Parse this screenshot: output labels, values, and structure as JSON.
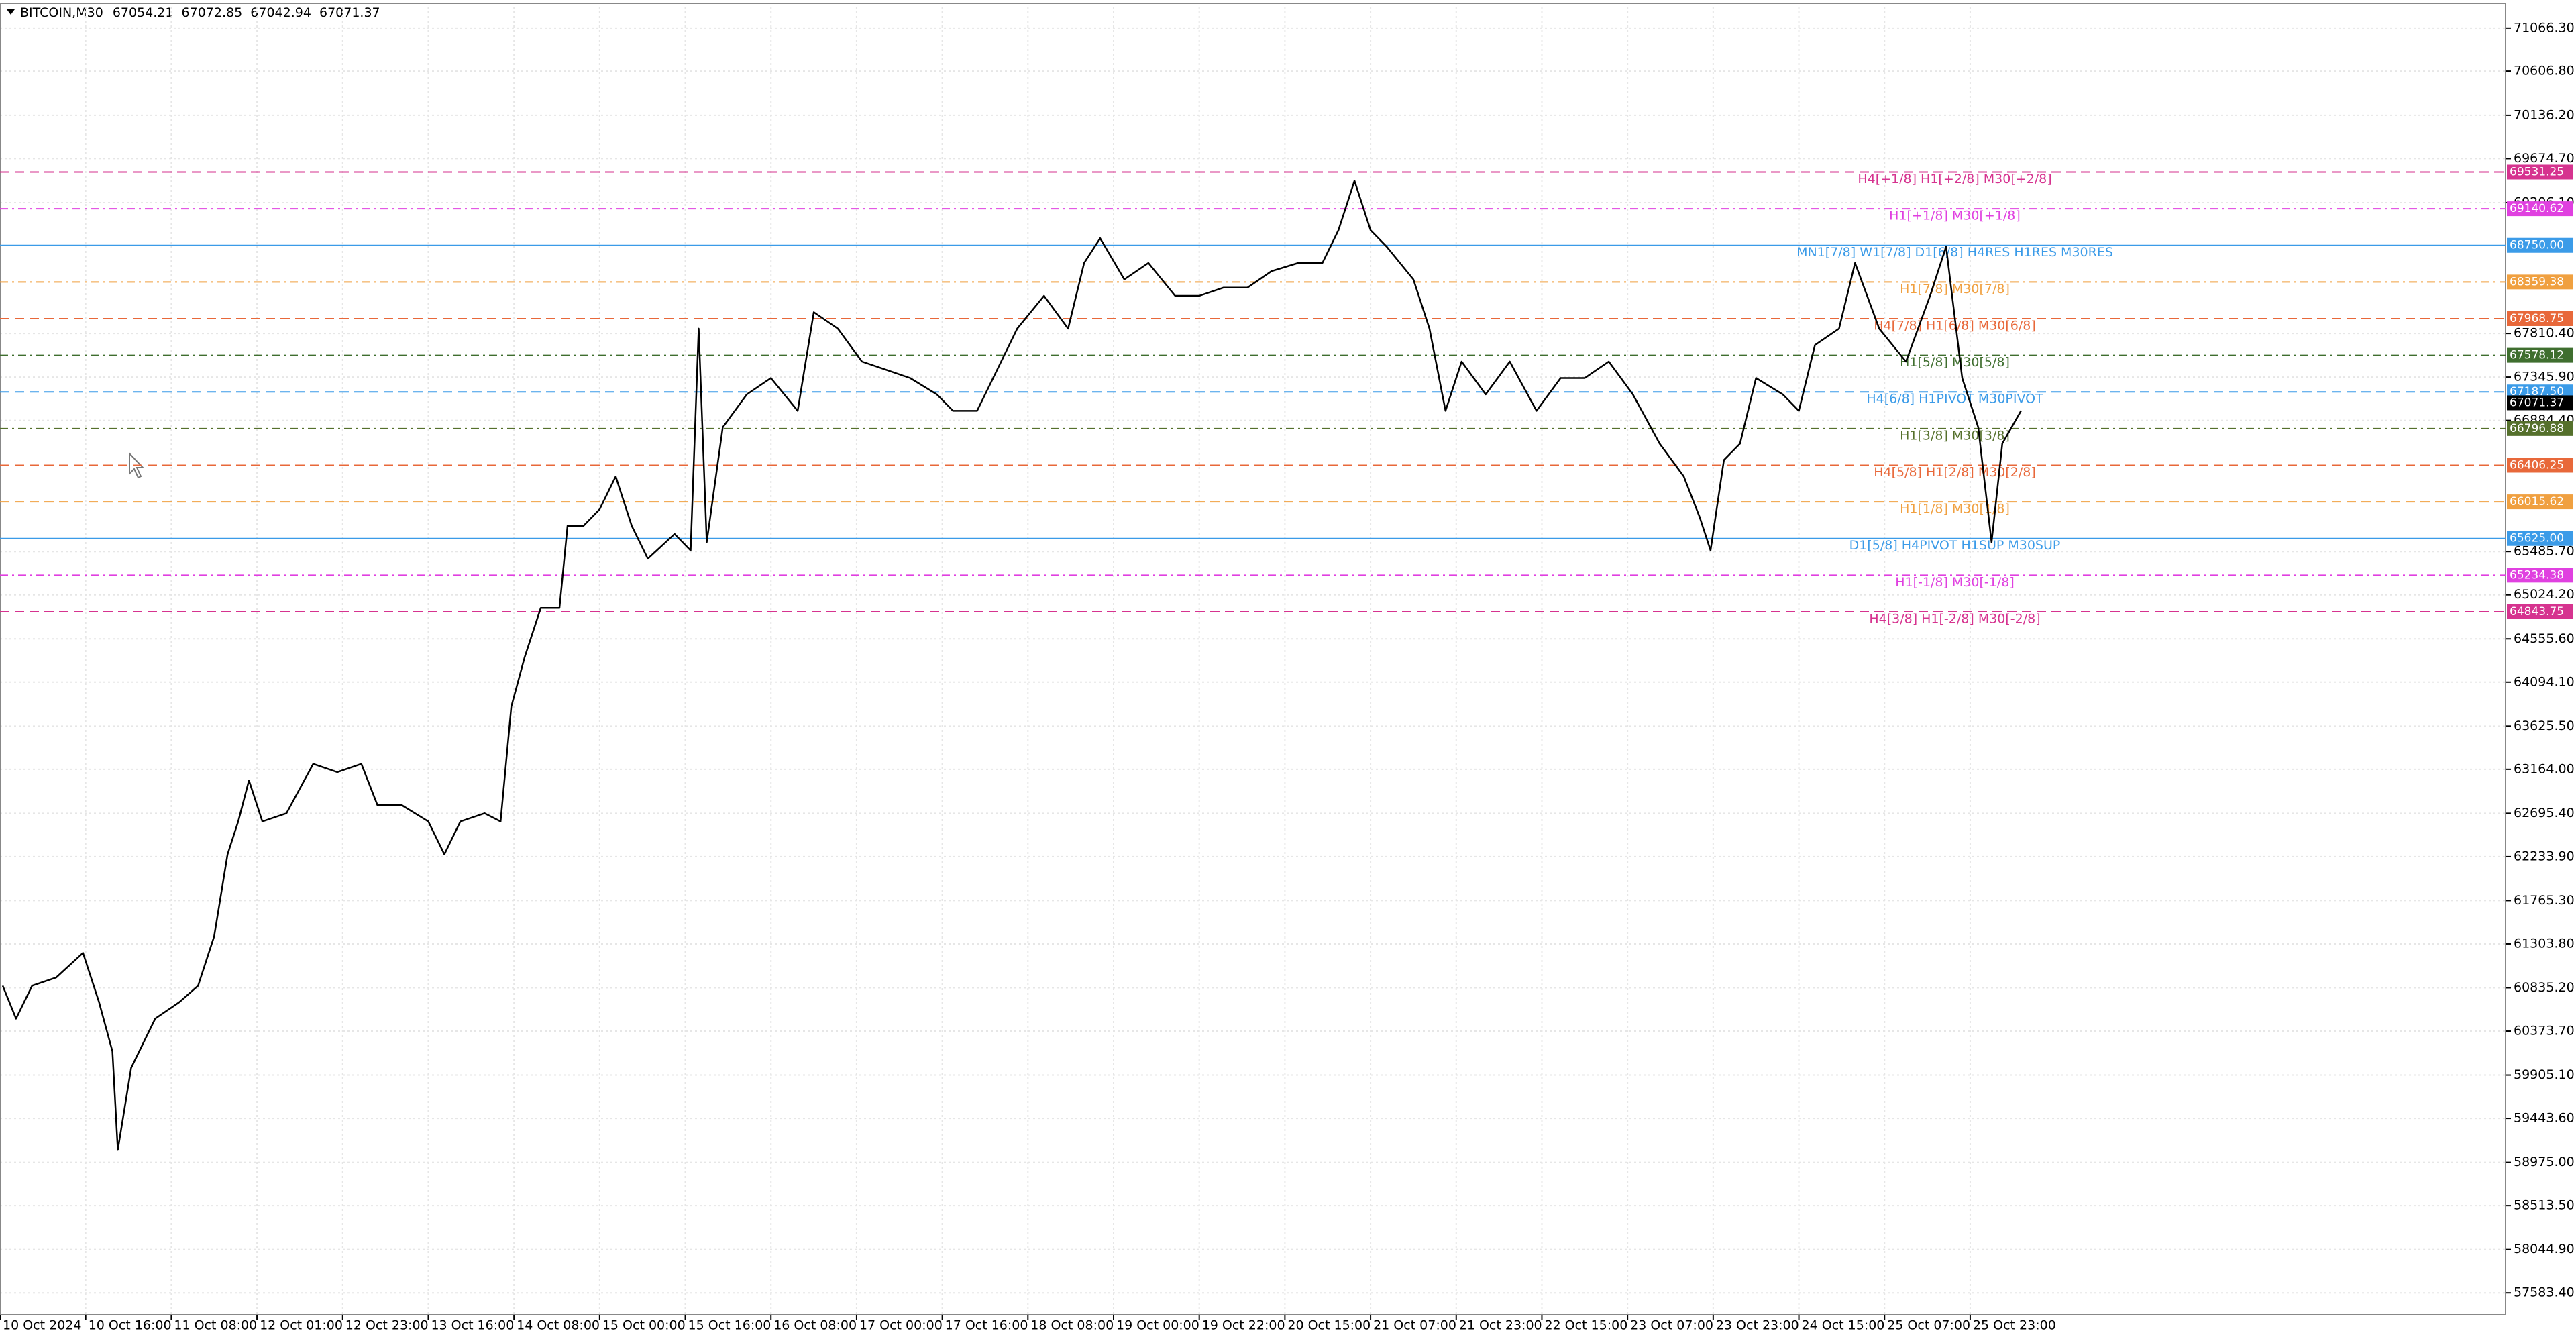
{
  "chart_data": {
    "type": "line",
    "title": "BITCOIN,M30",
    "ohlc": [
      67054.21,
      67072.85,
      67042.94,
      67071.37
    ],
    "series": [
      {
        "color": "#000000",
        "x": [
          1,
          6,
          12,
          21,
          31,
          37,
          42,
          44,
          49,
          58,
          67,
          74,
          80,
          85,
          89,
          93,
          98,
          107,
          117,
          126,
          135,
          141,
          150,
          160,
          166,
          172,
          181,
          187,
          191,
          196,
          202,
          209,
          212,
          218,
          224,
          230,
          236,
          242,
          252,
          258,
          261,
          264,
          270,
          279,
          288,
          298,
          304,
          313,
          322,
          331,
          340,
          350,
          356,
          365,
          374,
          380,
          390,
          399,
          405,
          411,
          420,
          429,
          439,
          448,
          457,
          466,
          475,
          485,
          494,
          500,
          506,
          512,
          518,
          528,
          534,
          540,
          546,
          555,
          564,
          574,
          583,
          592,
          601,
          610,
          620,
          629,
          635,
          639,
          644,
          650,
          656,
          666,
          672,
          678,
          687,
          693,
          702,
          712,
          721,
          727,
          733,
          739,
          744,
          748,
          755
        ],
        "values": [
          60858,
          60507,
          60858,
          60945,
          61208,
          60683,
          60157,
          59107,
          59982,
          60507,
          60683,
          60858,
          61383,
          62258,
          62609,
          63046,
          62609,
          62696,
          63222,
          63134,
          63222,
          62784,
          62784,
          62609,
          62258,
          62609,
          62696,
          62609,
          63834,
          64360,
          64885,
          64885,
          65760,
          65760,
          65936,
          66286,
          65760,
          65410,
          65673,
          65498,
          67862,
          65585,
          66811,
          67161,
          67336,
          66986,
          68037,
          67862,
          67511,
          67424,
          67336,
          67161,
          66986,
          66986,
          67511,
          67862,
          68212,
          67862,
          68562,
          68825,
          68387,
          68562,
          68212,
          68212,
          68299,
          68299,
          68475,
          68562,
          68562,
          68912,
          69438,
          68912,
          68737,
          68387,
          67862,
          66986,
          67511,
          67161,
          67511,
          66986,
          67336,
          67336,
          67511,
          67161,
          66636,
          66286,
          65848,
          65498,
          66461,
          66636,
          67336,
          67161,
          66986,
          67687,
          67862,
          68562,
          67862,
          67511,
          68212,
          68737,
          67336,
          66811,
          65585,
          66636,
          66986
        ]
      }
    ],
    "xlim": [
      0,
      936
    ],
    "xticks": [
      {
        "value": 0,
        "label": "10 Oct 2024"
      },
      {
        "value": 32,
        "label": "10 Oct 16:00"
      },
      {
        "value": 64,
        "label": "11 Oct 08:00"
      },
      {
        "value": 96,
        "label": "12 Oct 01:00"
      },
      {
        "value": 128,
        "label": "12 Oct 23:00"
      },
      {
        "value": 160,
        "label": "13 Oct 16:00"
      },
      {
        "value": 192,
        "label": "14 Oct 08:00"
      },
      {
        "value": 224,
        "label": "15 Oct 00:00"
      },
      {
        "value": 256,
        "label": "15 Oct 16:00"
      },
      {
        "value": 288,
        "label": "16 Oct 08:00"
      },
      {
        "value": 320,
        "label": "17 Oct 00:00"
      },
      {
        "value": 352,
        "label": "17 Oct 16:00"
      },
      {
        "value": 384,
        "label": "18 Oct 08:00"
      },
      {
        "value": 416,
        "label": "19 Oct 00:00"
      },
      {
        "value": 448,
        "label": "19 Oct 22:00"
      },
      {
        "value": 480,
        "label": "20 Oct 15:00"
      },
      {
        "value": 512,
        "label": "21 Oct 07:00"
      },
      {
        "value": 544,
        "label": "21 Oct 23:00"
      },
      {
        "value": 576,
        "label": "22 Oct 15:00"
      },
      {
        "value": 608,
        "label": "23 Oct 07:00"
      },
      {
        "value": 640,
        "label": "23 Oct 23:00"
      },
      {
        "value": 672,
        "label": "24 Oct 15:00"
      },
      {
        "value": 704,
        "label": "25 Oct 07:00"
      },
      {
        "value": 736,
        "label": "25 Oct 23:00"
      }
    ],
    "ylim": [
      57356,
      71294
    ],
    "yticks": [
      {
        "value": 71066.3,
        "label": "71066.30"
      },
      {
        "value": 70606.8,
        "label": "70606.80"
      },
      {
        "value": 70136.2,
        "label": "70136.20"
      },
      {
        "value": 69674.7,
        "label": "69674.70"
      },
      {
        "value": 69206.1,
        "label": "69206.10"
      },
      {
        "value": 67810.4,
        "label": "67810.40"
      },
      {
        "value": 67345.9,
        "label": "67345.90"
      },
      {
        "value": 66884.4,
        "label": "66884.40"
      },
      {
        "value": 65485.7,
        "label": "65485.70"
      },
      {
        "value": 65024.2,
        "label": "65024.20"
      },
      {
        "value": 64555.6,
        "label": "64555.60"
      },
      {
        "value": 64094.1,
        "label": "64094.10"
      },
      {
        "value": 63625.5,
        "label": "63625.50"
      },
      {
        "value": 63164,
        "label": "63164.00"
      },
      {
        "value": 62695.4,
        "label": "62695.40"
      },
      {
        "value": 62233.9,
        "label": "62233.90"
      },
      {
        "value": 61765.3,
        "label": "61765.30"
      },
      {
        "value": 61303.8,
        "label": "61303.80"
      },
      {
        "value": 60835.2,
        "label": "60835.20"
      },
      {
        "value": 60373.7,
        "label": "60373.70"
      },
      {
        "value": 59905.1,
        "label": "59905.10"
      },
      {
        "value": 59443.6,
        "label": "59443.60"
      },
      {
        "value": 58975,
        "label": "58975.00"
      },
      {
        "value": 58513.5,
        "label": "58513.50"
      },
      {
        "value": 58044.9,
        "label": "58044.90"
      },
      {
        "value": 57583.4,
        "label": "57583.40"
      }
    ],
    "grid": true,
    "levels": {
      "values": [
        69531.25,
        69140.62,
        68750,
        68359.38,
        67968.75,
        67578.12,
        67187.5,
        66796.88,
        66406.25,
        66015.62,
        65625,
        65234.38,
        64843.75
      ],
      "value_labels": [
        "69531.25",
        "69140.62",
        "68750.00",
        "68359.38",
        "67968.75",
        "67578.12",
        "67187.50",
        "66796.88",
        "66406.25",
        "66015.62",
        "65625.00",
        "65234.38",
        "64843.75"
      ],
      "labels": [
        "H4[+1/8] H1[+2/8] M30[+2/8]",
        "H1[+1/8] M30[+1/8]",
        "MN1[7/8] W1[7/8] D1[6/8] H4RES H1RES M30RES",
        "H1[7/8] M30[7/8]",
        "H4[7/8] H1[6/8] M30[6/8]",
        "H1[5/8] M30[5/8]",
        "H4[6/8] H1PIVOT M30PIVOT",
        "H1[3/8] M30[3/8]",
        "H4[5/8] H1[2/8] M30[2/8]",
        "H1[1/8] M30[1/8]",
        "D1[5/8] H4PIVOT H1SUP M30SUP",
        "H1[-1/8] M30[-1/8]",
        "H4[3/8] H1[-2/8] M30[-2/8]"
      ],
      "colors": [
        "#d6338f",
        "#e040e0",
        "#3b9be8",
        "#f0a040",
        "#e8683a",
        "#3f6e2f",
        "#3b9be8",
        "#55702c",
        "#e8683a",
        "#f0a040",
        "#3b9be8",
        "#e040e0",
        "#d6338f"
      ],
      "styles": [
        "dashed",
        "dash-dot",
        "solid",
        "dash-dot",
        "dashed",
        "dash-dot",
        "dashed",
        "dash-dot",
        "dashed",
        "dashed",
        "solid",
        "dash-dot",
        "dashed"
      ]
    }
  }
}
